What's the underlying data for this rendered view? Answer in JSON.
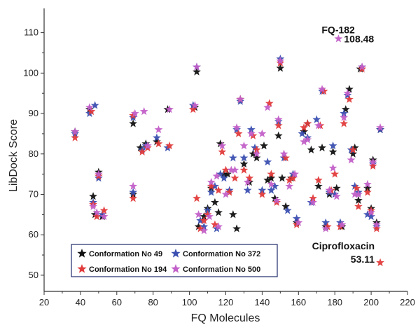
{
  "chart_data": {
    "type": "scatter",
    "title": "",
    "xlabel": "FQ Molecules",
    "ylabel": "LibDock Score",
    "xlim": [
      20,
      220
    ],
    "ylim": [
      46,
      116
    ],
    "xticks": [
      20,
      40,
      60,
      80,
      100,
      120,
      140,
      160,
      180,
      200,
      220
    ],
    "yticks": [
      50,
      60,
      70,
      80,
      90,
      100,
      110
    ],
    "grid": false,
    "legend_position": "bottom-left",
    "marker": "star",
    "series": [
      {
        "name": "Conformation No 49",
        "color": "#111111",
        "points": [
          [
            37,
            85.5
          ],
          [
            45,
            91
          ],
          [
            47,
            69.5
          ],
          [
            48,
            65
          ],
          [
            50,
            75.5
          ],
          [
            52,
            64.5
          ],
          [
            69,
            87.5
          ],
          [
            69,
            70
          ],
          [
            73,
            81.5
          ],
          [
            76,
            82.5
          ],
          [
            82,
            83
          ],
          [
            88,
            91
          ],
          [
            103,
            91.5
          ],
          [
            104,
            100.3
          ],
          [
            105,
            62
          ],
          [
            108,
            64.5
          ],
          [
            110,
            66.5
          ],
          [
            112,
            71.5
          ],
          [
            114,
            68
          ],
          [
            116,
            65.5
          ],
          [
            117,
            82.5
          ],
          [
            119,
            75
          ],
          [
            121,
            75
          ],
          [
            124,
            65
          ],
          [
            126,
            61.5
          ],
          [
            128,
            93.5
          ],
          [
            130,
            77.5
          ],
          [
            133,
            73
          ],
          [
            135,
            80
          ],
          [
            137,
            79
          ],
          [
            141,
            82
          ],
          [
            143,
            73.5
          ],
          [
            145,
            74
          ],
          [
            147,
            69
          ],
          [
            149,
            84.5
          ],
          [
            150,
            101.2
          ],
          [
            151,
            74
          ],
          [
            153,
            67
          ],
          [
            156,
            74
          ],
          [
            159,
            63
          ],
          [
            163,
            85.5
          ],
          [
            165,
            87.5
          ],
          [
            167,
            81
          ],
          [
            171,
            72
          ],
          [
            173,
            81.5
          ],
          [
            175,
            62
          ],
          [
            177,
            70
          ],
          [
            179,
            80.5
          ],
          [
            181,
            71.5
          ],
          [
            184,
            62
          ],
          [
            186,
            91
          ],
          [
            188,
            96
          ],
          [
            190,
            80
          ],
          [
            191,
            81.5
          ],
          [
            193,
            68.5
          ],
          [
            194,
            101
          ],
          [
            198,
            71.5
          ],
          [
            200,
            66.5
          ],
          [
            201,
            78.5
          ],
          [
            203,
            63
          ],
          [
            205,
            86
          ]
        ]
      },
      {
        "name": "Conformation No 372",
        "color": "#3a4fb0",
        "points": [
          [
            37,
            85
          ],
          [
            45,
            90
          ],
          [
            48,
            92
          ],
          [
            47,
            68
          ],
          [
            50,
            74
          ],
          [
            52,
            65
          ],
          [
            69,
            89
          ],
          [
            69,
            70.5
          ],
          [
            74,
            81
          ],
          [
            76,
            82
          ],
          [
            82,
            84
          ],
          [
            88,
            81.5
          ],
          [
            102,
            92
          ],
          [
            104,
            101.5
          ],
          [
            106,
            63.5
          ],
          [
            108,
            62
          ],
          [
            110,
            66
          ],
          [
            112,
            70.5
          ],
          [
            114,
            72
          ],
          [
            115,
            61.5
          ],
          [
            117,
            75
          ],
          [
            119,
            74
          ],
          [
            122,
            71
          ],
          [
            124,
            79
          ],
          [
            126,
            86
          ],
          [
            128,
            93
          ],
          [
            130,
            79
          ],
          [
            132,
            71
          ],
          [
            134,
            86
          ],
          [
            136,
            81.5
          ],
          [
            140,
            71
          ],
          [
            143,
            78
          ],
          [
            145,
            71
          ],
          [
            147,
            72
          ],
          [
            149,
            88
          ],
          [
            150,
            103.5
          ],
          [
            152,
            79
          ],
          [
            154,
            66
          ],
          [
            157,
            75
          ],
          [
            159,
            64
          ],
          [
            162,
            85
          ],
          [
            165,
            84
          ],
          [
            167,
            68
          ],
          [
            170,
            88.5
          ],
          [
            173,
            95.5
          ],
          [
            175,
            63
          ],
          [
            177,
            70.5
          ],
          [
            179,
            82
          ],
          [
            180,
            70
          ],
          [
            183,
            63
          ],
          [
            185,
            90
          ],
          [
            187,
            94.5
          ],
          [
            189,
            81
          ],
          [
            191,
            72
          ],
          [
            193,
            70.5
          ],
          [
            195,
            101.5
          ],
          [
            198,
            65
          ],
          [
            200,
            64.5
          ],
          [
            201,
            77.5
          ],
          [
            203,
            62
          ],
          [
            205,
            86
          ]
        ]
      },
      {
        "name": "Conformation No 194",
        "color": "#e23b3b",
        "points": [
          [
            37,
            84
          ],
          [
            46,
            90.5
          ],
          [
            47,
            67.5
          ],
          [
            49,
            64.5
          ],
          [
            50,
            74.5
          ],
          [
            53,
            66
          ],
          [
            69,
            89.5
          ],
          [
            69,
            69
          ],
          [
            74,
            80.5
          ],
          [
            77,
            81.5
          ],
          [
            83,
            82.5
          ],
          [
            89,
            82
          ],
          [
            102,
            91
          ],
          [
            104,
            69
          ],
          [
            106,
            61.5
          ],
          [
            108,
            63.5
          ],
          [
            110,
            65
          ],
          [
            112,
            72
          ],
          [
            114,
            62.5
          ],
          [
            116,
            71
          ],
          [
            118,
            80.5
          ],
          [
            120,
            76
          ],
          [
            122,
            70.5
          ],
          [
            125,
            74
          ],
          [
            127,
            85
          ],
          [
            128,
            93.5
          ],
          [
            130,
            76
          ],
          [
            133,
            74
          ],
          [
            135,
            84.5
          ],
          [
            137,
            81
          ],
          [
            140,
            70
          ],
          [
            144,
            92.5
          ],
          [
            145,
            75
          ],
          [
            148,
            68
          ],
          [
            149,
            87
          ],
          [
            150,
            102.5
          ],
          [
            153,
            79
          ],
          [
            155,
            73.5
          ],
          [
            157,
            74
          ],
          [
            159,
            62.5
          ],
          [
            163,
            86.5
          ],
          [
            165,
            87.5
          ],
          [
            168,
            69
          ],
          [
            171,
            73.5
          ],
          [
            172,
            87
          ],
          [
            174,
            95.5
          ],
          [
            176,
            62
          ],
          [
            178,
            71
          ],
          [
            180,
            75
          ],
          [
            183,
            62
          ],
          [
            185,
            87.5
          ],
          [
            188,
            93.5
          ],
          [
            190,
            81
          ],
          [
            192,
            71.5
          ],
          [
            193,
            67
          ],
          [
            195,
            101
          ],
          [
            198,
            70.5
          ],
          [
            200,
            66
          ],
          [
            201,
            77
          ],
          [
            203,
            61.5
          ],
          [
            205,
            53.11
          ]
        ]
      },
      {
        "name": "Conformation No 500",
        "color": "#c25fc8",
        "points": [
          [
            37,
            85.5
          ],
          [
            45,
            91.5
          ],
          [
            47,
            67
          ],
          [
            49,
            65.5
          ],
          [
            50,
            75
          ],
          [
            53,
            64.5
          ],
          [
            69,
            72
          ],
          [
            70,
            90
          ],
          [
            75,
            90.5
          ],
          [
            77,
            82
          ],
          [
            83,
            86
          ],
          [
            89,
            91
          ],
          [
            103,
            92
          ],
          [
            104,
            101.5
          ],
          [
            105,
            65
          ],
          [
            108,
            61
          ],
          [
            111,
            64.5
          ],
          [
            112,
            73
          ],
          [
            115,
            74.5
          ],
          [
            116,
            62
          ],
          [
            118,
            82
          ],
          [
            120,
            70
          ],
          [
            123,
            76
          ],
          [
            125,
            76
          ],
          [
            126,
            86.5
          ],
          [
            128,
            93.5
          ],
          [
            130,
            82
          ],
          [
            132,
            73
          ],
          [
            134,
            85
          ],
          [
            137,
            80
          ],
          [
            140,
            85
          ],
          [
            143,
            91.5
          ],
          [
            145,
            72.5
          ],
          [
            148,
            68.5
          ],
          [
            149,
            88.5
          ],
          [
            150,
            103
          ],
          [
            152,
            80
          ],
          [
            155,
            72
          ],
          [
            158,
            75
          ],
          [
            160,
            63
          ],
          [
            163,
            83
          ],
          [
            165,
            83.5
          ],
          [
            168,
            68
          ],
          [
            171,
            87
          ],
          [
            173,
            96
          ],
          [
            175,
            61.5
          ],
          [
            177,
            71
          ],
          [
            179,
            76.5
          ],
          [
            181,
            69.5
          ],
          [
            184,
            62.5
          ],
          [
            185,
            89
          ],
          [
            187,
            95
          ],
          [
            189,
            78.5
          ],
          [
            191,
            70
          ],
          [
            193,
            70
          ],
          [
            195,
            101.5
          ],
          [
            198,
            72.5
          ],
          [
            200,
            65.5
          ],
          [
            201,
            78
          ],
          [
            203,
            62.5
          ],
          [
            205,
            86.5
          ],
          [
            182,
            108.48
          ]
        ]
      }
    ],
    "annotations": [
      {
        "label": "FQ-182",
        "value": "108.48",
        "x": 182,
        "y": 108.48
      },
      {
        "label": "Ciprofloxacin",
        "value": "53.11",
        "x": 205,
        "y": 53.11
      }
    ]
  }
}
